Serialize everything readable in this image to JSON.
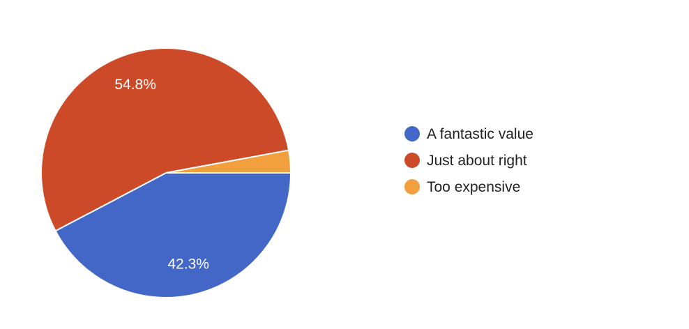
{
  "chart_data": {
    "type": "pie",
    "categories": [
      "A fantastic value",
      "Just about right",
      "Too expensive"
    ],
    "values": [
      42.3,
      54.8,
      2.9
    ],
    "value_labels": [
      "42.3%",
      "54.8%",
      ""
    ],
    "colors": [
      "#4267C7",
      "#CC4A27",
      "#F2A03D"
    ],
    "legend_position": "right",
    "start_direction": "east",
    "direction": "clockwise"
  }
}
